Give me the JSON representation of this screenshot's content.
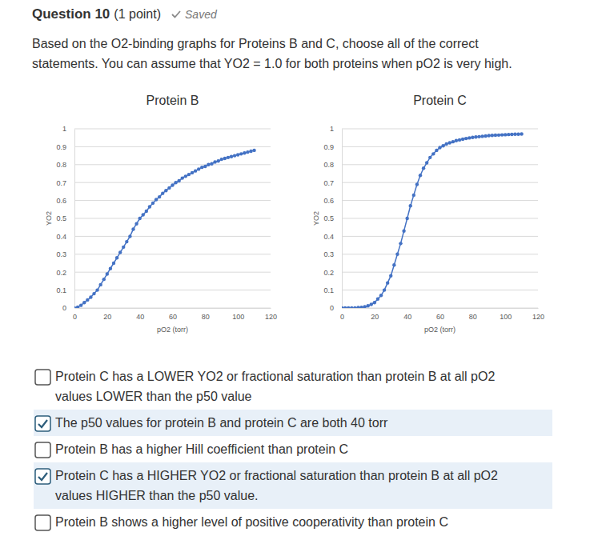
{
  "header": {
    "title": "Question 10",
    "points": "(1 point)",
    "status": "Saved"
  },
  "question": [
    "Based on the O2-binding graphs for Proteins B and C, choose all of the correct",
    "statements. You can assume that YO2 = 1.0 for both proteins when pO2 is very high."
  ],
  "chart_data": [
    {
      "type": "line",
      "title": "Protein B",
      "x_label": "pO2 (torr)",
      "y_label": "YO2",
      "x": [
        0,
        2,
        4,
        6,
        8,
        10,
        12,
        14,
        16,
        18,
        20,
        22,
        24,
        26,
        28,
        30,
        32,
        34,
        36,
        38,
        40,
        42,
        44,
        46,
        48,
        50,
        52,
        54,
        56,
        58,
        60,
        62,
        64,
        66,
        68,
        70,
        72,
        74,
        76,
        78,
        80,
        82,
        84,
        86,
        88,
        90,
        92,
        94,
        96,
        98,
        100,
        102,
        104,
        106,
        108,
        110
      ],
      "series": [
        {
          "color": "#4472c4",
          "marker": "circle",
          "line_style": "solid",
          "values": [
            0.0,
            0.005,
            0.015,
            0.03,
            0.045,
            0.06,
            0.08,
            0.1,
            0.13,
            0.16,
            0.19,
            0.22,
            0.25,
            0.28,
            0.31,
            0.34,
            0.37,
            0.4,
            0.44,
            0.47,
            0.5,
            0.52,
            0.54,
            0.565,
            0.585,
            0.605,
            0.62,
            0.64,
            0.655,
            0.67,
            0.685,
            0.7,
            0.71,
            0.725,
            0.735,
            0.745,
            0.755,
            0.765,
            0.775,
            0.785,
            0.79,
            0.8,
            0.805,
            0.815,
            0.82,
            0.83,
            0.835,
            0.84,
            0.845,
            0.85,
            0.855,
            0.86,
            0.865,
            0.87,
            0.875,
            0.88
          ]
        }
      ],
      "xlim": [
        0,
        120
      ],
      "xticks": [
        0,
        20,
        40,
        60,
        80,
        100,
        120
      ],
      "ylim": [
        0,
        1
      ],
      "yticks": [
        0,
        0.1,
        0.2,
        0.3,
        0.4,
        0.5,
        0.6,
        0.7,
        0.8,
        0.9,
        1
      ],
      "grid": true
    },
    {
      "type": "line",
      "title": "Protein C",
      "x_label": "pO2 (torr)",
      "y_label": "YO2",
      "x": [
        0,
        2,
        4,
        6,
        8,
        10,
        12,
        14,
        16,
        18,
        20,
        22,
        24,
        26,
        28,
        30,
        32,
        34,
        36,
        38,
        40,
        42,
        44,
        46,
        48,
        50,
        52,
        54,
        56,
        58,
        60,
        62,
        64,
        66,
        68,
        70,
        72,
        74,
        76,
        78,
        80,
        82,
        84,
        86,
        88,
        90,
        92,
        94,
        96,
        98,
        100,
        102,
        104,
        106,
        108,
        110
      ],
      "series": [
        {
          "color": "#4472c4",
          "marker": "circle",
          "line_style": "solid",
          "values": [
            0.0,
            0.0,
            0.0,
            0.0,
            0.0,
            0.002,
            0.004,
            0.007,
            0.012,
            0.02,
            0.03,
            0.05,
            0.07,
            0.1,
            0.14,
            0.18,
            0.24,
            0.3,
            0.36,
            0.43,
            0.5,
            0.57,
            0.63,
            0.69,
            0.74,
            0.78,
            0.81,
            0.84,
            0.86,
            0.88,
            0.895,
            0.905,
            0.915,
            0.922,
            0.928,
            0.934,
            0.938,
            0.942,
            0.946,
            0.949,
            0.952,
            0.954,
            0.956,
            0.958,
            0.96,
            0.962,
            0.963,
            0.964,
            0.965,
            0.966,
            0.967,
            0.968,
            0.969,
            0.97,
            0.97,
            0.971
          ]
        }
      ],
      "xlim": [
        0,
        120
      ],
      "xticks": [
        0,
        20,
        40,
        60,
        80,
        100,
        120
      ],
      "ylim": [
        0,
        1
      ],
      "yticks": [
        0,
        0.1,
        0.2,
        0.3,
        0.4,
        0.5,
        0.6,
        0.7,
        0.8,
        0.9,
        1
      ],
      "grid": true
    }
  ],
  "options": [
    {
      "checked": false,
      "lines": [
        "Protein C has a LOWER YO2 or fractional saturation than protein B at all pO2",
        "values LOWER than the p50 value"
      ]
    },
    {
      "checked": true,
      "lines": [
        "The p50 values for protein B and protein C are both 40 torr"
      ]
    },
    {
      "checked": false,
      "lines": [
        "Protein B has a higher Hill coefficient than protein C"
      ]
    },
    {
      "checked": true,
      "lines": [
        "Protein C has a HIGHER YO2 or fractional saturation than protein B at all pO2",
        "values HIGHER than the p50 value."
      ]
    },
    {
      "checked": false,
      "lines": [
        "Protein B shows a higher level of positive cooperativity than protein C"
      ]
    }
  ]
}
